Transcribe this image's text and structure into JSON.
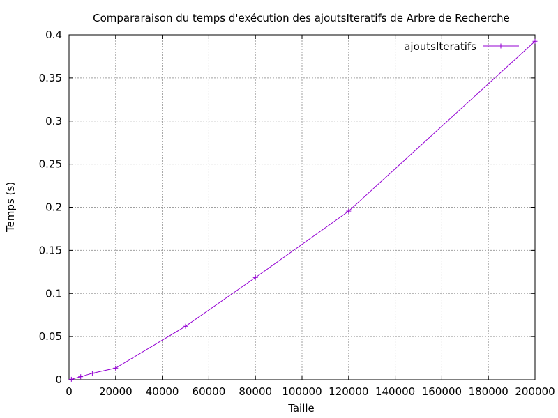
{
  "chart_data": {
    "type": "line",
    "title": "Compararaison du temps d'exécution des ajoutsIteratifs de Arbre de Recherche",
    "xlabel": "Taille",
    "ylabel": "Temps (s)",
    "xlim": [
      0,
      200000
    ],
    "ylim": [
      0,
      0.4
    ],
    "xticks": [
      0,
      20000,
      40000,
      60000,
      80000,
      100000,
      120000,
      140000,
      160000,
      180000,
      200000
    ],
    "yticks": [
      0,
      0.05,
      0.1,
      0.15,
      0.2,
      0.25,
      0.3,
      0.35,
      0.4
    ],
    "xtick_labels": [
      "0",
      "20000",
      "40000",
      "60000",
      "80000",
      "100000",
      "120000",
      "140000",
      "160000",
      "180000",
      "200000"
    ],
    "ytick_labels": [
      "0",
      "0.05",
      "0.1",
      "0.15",
      "0.2",
      "0.25",
      "0.3",
      "0.35",
      "0.4"
    ],
    "grid": true,
    "legend_position": "top-right",
    "series": [
      {
        "name": "ajoutsIteratifs",
        "color": "#9400d3",
        "x": [
          1000,
          5000,
          10000,
          20000,
          50000,
          80000,
          120000,
          200000
        ],
        "y": [
          0.0005,
          0.0035,
          0.0075,
          0.0135,
          0.062,
          0.1185,
          0.1955,
          0.3925
        ]
      }
    ]
  }
}
